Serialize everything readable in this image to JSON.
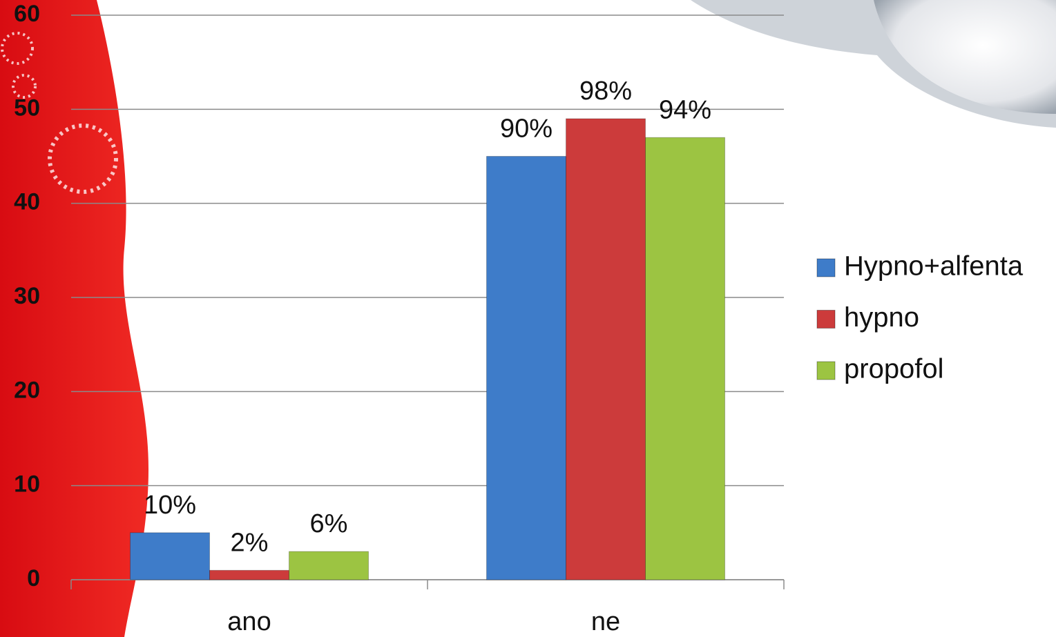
{
  "chart_data": {
    "type": "bar",
    "categories": [
      "ano",
      "ne"
    ],
    "series": [
      {
        "name": "Hypno+alfenta",
        "color": "#3e7cc9",
        "values": [
          5,
          45
        ],
        "value_labels": [
          "10%",
          "90%"
        ]
      },
      {
        "name": "hypno",
        "color": "#cc3b3b",
        "values": [
          1,
          49
        ],
        "value_labels": [
          "2%",
          "98%"
        ]
      },
      {
        "name": "propofol",
        "color": "#9cc442",
        "values": [
          3,
          47
        ],
        "value_labels": [
          "6%",
          "94%"
        ]
      }
    ],
    "ylim": [
      0,
      60
    ],
    "yticks": [
      0,
      10,
      20,
      30,
      40,
      50,
      60
    ],
    "grid": true,
    "legend": "right"
  }
}
